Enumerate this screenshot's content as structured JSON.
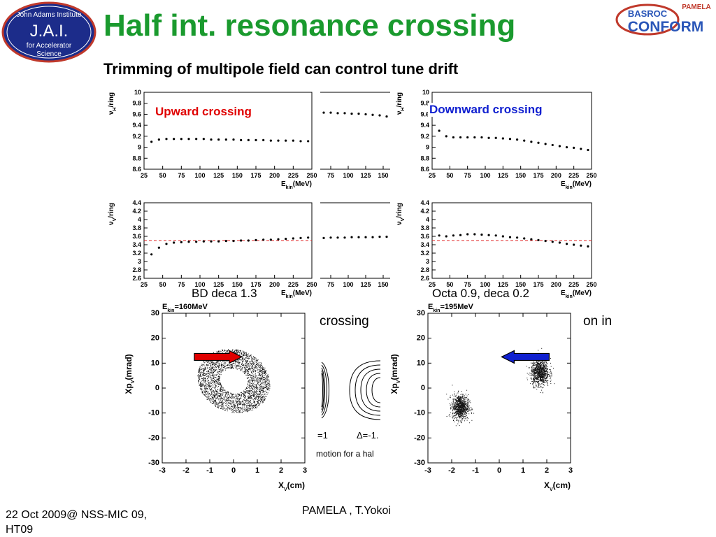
{
  "slide": {
    "title": "Half int. resonance crossing",
    "subtitle": "Trimming of multipole field can control tune drift",
    "footer_left": "22 Oct 2009@ NSS-MIC 09, HT09",
    "footer_center": "PAMELA , T.Yokoi"
  },
  "logos": {
    "jai": {
      "line1": "John Adams Institute",
      "line2": "J.A.I.",
      "line3": "for Accelerator",
      "line4": "Science"
    },
    "basroc": {
      "line1": "BASROC",
      "line2": "CONFORM",
      "tag": "PAMELA"
    }
  },
  "annotations": {
    "upward": "Upward crossing",
    "downward": "Downward crossing",
    "bd_deca": "BD deca 1.3",
    "octa": "Octa 0.9, deca 0.2",
    "partial_crossing": "crossing",
    "partial_in": "on in",
    "frag_delta1": "=1",
    "frag_delta2": "Δ=-1.",
    "frag_caption": "motion for a hal"
  },
  "colors": {
    "title": "#1a9a2e",
    "upward": "#e00000",
    "downward": "#1020d0",
    "resonance_line": "#e02020"
  },
  "chart_data": [
    {
      "id": "tune-h-upward",
      "type": "scatter",
      "xlabel": "E_kin(MeV)",
      "ylabel": "ν_H/ring",
      "xlim": [
        25,
        250
      ],
      "ylim": [
        8.6,
        10
      ],
      "xticks": [
        25,
        50,
        75,
        100,
        125,
        150,
        175,
        200,
        225,
        250
      ],
      "yticks": [
        8.6,
        8.8,
        9,
        9.2,
        9.4,
        9.6,
        9.8,
        10
      ],
      "x": [
        35,
        45,
        55,
        65,
        75,
        85,
        95,
        105,
        115,
        125,
        135,
        145,
        155,
        165,
        175,
        185,
        195,
        205,
        215,
        225,
        235,
        245
      ],
      "y": [
        9.1,
        9.14,
        9.15,
        9.15,
        9.15,
        9.15,
        9.15,
        9.15,
        9.14,
        9.14,
        9.14,
        9.14,
        9.13,
        9.13,
        9.13,
        9.13,
        9.12,
        9.12,
        9.12,
        9.12,
        9.11,
        9.11
      ]
    },
    {
      "id": "tune-h-middle",
      "type": "scatter",
      "xlim": [
        60,
        160
      ],
      "ylim": [
        8.6,
        10
      ],
      "xticks": [
        75,
        100,
        125,
        150
      ],
      "x": [
        65,
        75,
        85,
        95,
        105,
        115,
        125,
        135,
        145,
        155
      ],
      "y": [
        9.63,
        9.63,
        9.62,
        9.62,
        9.61,
        9.61,
        9.6,
        9.59,
        9.58,
        9.56
      ]
    },
    {
      "id": "tune-h-downward",
      "type": "scatter",
      "xlabel": "E_kin(MeV)",
      "ylabel": "ν_H/ring",
      "xlim": [
        25,
        250
      ],
      "ylim": [
        8.6,
        10
      ],
      "xticks": [
        25,
        50,
        75,
        100,
        125,
        150,
        175,
        200,
        225,
        250
      ],
      "yticks": [
        8.6,
        8.8,
        9,
        9.2,
        9.4,
        9.6,
        9.8,
        10
      ],
      "x": [
        35,
        45,
        55,
        65,
        75,
        85,
        95,
        105,
        115,
        125,
        135,
        145,
        155,
        165,
        175,
        185,
        195,
        205,
        215,
        225,
        235,
        245
      ],
      "y": [
        9.3,
        9.2,
        9.18,
        9.18,
        9.18,
        9.18,
        9.18,
        9.17,
        9.17,
        9.16,
        9.15,
        9.14,
        9.12,
        9.1,
        9.08,
        9.06,
        9.04,
        9.02,
        9.0,
        8.99,
        8.97,
        8.95
      ]
    },
    {
      "id": "tune-v-upward",
      "type": "scatter",
      "xlabel": "E_kin(MeV)",
      "ylabel": "ν_V/ring",
      "xlim": [
        25,
        250
      ],
      "ylim": [
        2.6,
        4.4
      ],
      "xticks": [
        25,
        50,
        75,
        100,
        125,
        150,
        175,
        200,
        225,
        250
      ],
      "yticks": [
        2.6,
        2.8,
        3,
        3.2,
        3.4,
        3.6,
        3.8,
        4,
        4.2,
        4.4
      ],
      "resonance": 3.5,
      "x": [
        35,
        45,
        55,
        65,
        75,
        85,
        95,
        105,
        115,
        125,
        135,
        145,
        155,
        165,
        175,
        185,
        195,
        205,
        215,
        225,
        235,
        245
      ],
      "y": [
        3.17,
        3.33,
        3.42,
        3.45,
        3.46,
        3.47,
        3.47,
        3.48,
        3.48,
        3.48,
        3.49,
        3.49,
        3.5,
        3.5,
        3.51,
        3.52,
        3.52,
        3.53,
        3.54,
        3.55,
        3.56,
        3.57
      ]
    },
    {
      "id": "tune-v-middle",
      "type": "scatter",
      "xlim": [
        60,
        160
      ],
      "ylim": [
        2.6,
        4.4
      ],
      "xticks": [
        75,
        100,
        125,
        150
      ],
      "x": [
        65,
        75,
        85,
        95,
        105,
        115,
        125,
        135,
        145,
        155
      ],
      "y": [
        3.56,
        3.57,
        3.57,
        3.57,
        3.58,
        3.58,
        3.58,
        3.58,
        3.59,
        3.59
      ]
    },
    {
      "id": "tune-v-downward",
      "type": "scatter",
      "xlabel": "E_kin(MeV)",
      "ylabel": "ν_V/ring",
      "xlim": [
        25,
        250
      ],
      "ylim": [
        2.6,
        4.4
      ],
      "xticks": [
        25,
        50,
        75,
        100,
        125,
        150,
        175,
        200,
        225,
        250
      ],
      "yticks": [
        2.6,
        2.8,
        3,
        3.2,
        3.4,
        3.6,
        3.8,
        4,
        4.2,
        4.4
      ],
      "resonance": 3.5,
      "x": [
        35,
        45,
        55,
        65,
        75,
        85,
        95,
        105,
        115,
        125,
        135,
        145,
        155,
        165,
        175,
        185,
        195,
        205,
        215,
        225,
        235,
        245
      ],
      "y": [
        3.62,
        3.6,
        3.62,
        3.63,
        3.65,
        3.65,
        3.64,
        3.63,
        3.62,
        3.6,
        3.58,
        3.57,
        3.55,
        3.53,
        3.51,
        3.49,
        3.47,
        3.45,
        3.42,
        3.4,
        3.38,
        3.36
      ]
    },
    {
      "id": "phase-upward",
      "type": "scatter",
      "title": "E_kin=160MeV",
      "xlabel": "X_V(cm)",
      "ylabel": "Xp_V(mrad)",
      "xlim": [
        -3,
        3
      ],
      "ylim": [
        -30,
        30
      ],
      "xticks": [
        -3,
        -2,
        -1,
        0,
        1,
        2,
        3
      ],
      "yticks": [
        -30,
        -20,
        -10,
        0,
        10,
        20,
        30
      ],
      "cloud": [
        {
          "cx": 0.0,
          "cy": 3.0,
          "rx": 1.55,
          "ry": 12.5,
          "rot": -22,
          "n": 2600,
          "ring": true
        }
      ],
      "arrow": {
        "from": [
          -1.65,
          12.5
        ],
        "to": [
          0.35,
          12.5
        ],
        "color": "red"
      }
    },
    {
      "id": "phase-downward",
      "type": "scatter",
      "title": "E_kin=195MeV",
      "xlabel": "X_V(cm)",
      "ylabel": "Xp_V(mrad)",
      "xlim": [
        -3,
        3
      ],
      "ylim": [
        -30,
        30
      ],
      "xticks": [
        -3,
        -2,
        -1,
        0,
        1,
        2,
        3
      ],
      "yticks": [
        -30,
        -20,
        -10,
        0,
        10,
        20,
        30
      ],
      "cloud": [
        {
          "cx": -1.65,
          "cy": -7.5,
          "rx": 0.45,
          "ry": 6.5,
          "rot": 0,
          "n": 900,
          "ring": false
        },
        {
          "cx": 1.7,
          "cy": 6.5,
          "rx": 0.5,
          "ry": 7.0,
          "rot": 0,
          "n": 950,
          "ring": false
        }
      ],
      "arrow": {
        "from": [
          2.1,
          12.5
        ],
        "to": [
          0.1,
          12.5
        ],
        "color": "blue"
      }
    }
  ]
}
